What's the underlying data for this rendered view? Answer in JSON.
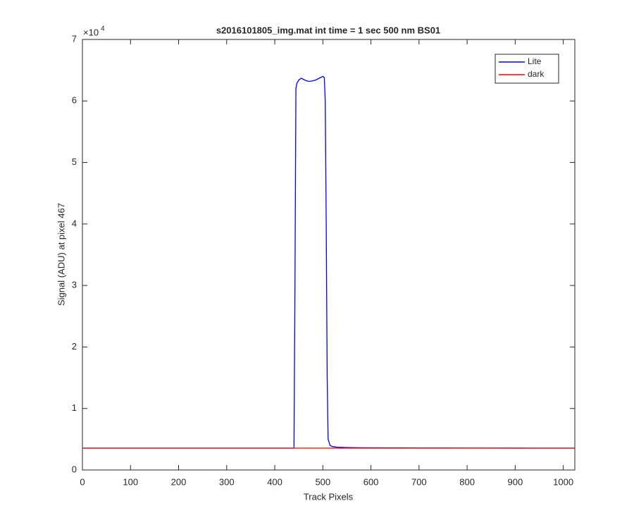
{
  "chart_data": {
    "type": "line",
    "title": "s2016101805_img.mat int time = 1 sec  500 nm BS01",
    "xlabel": "Track Pixels",
    "ylabel": "Signal (ADU) at pixel 467",
    "y_multiplier": "×10",
    "y_multiplier_exponent": "4",
    "xlim": [
      0,
      1024
    ],
    "ylim": [
      0,
      70000
    ],
    "xticks": [
      0,
      100,
      200,
      300,
      400,
      500,
      600,
      700,
      800,
      900,
      1000
    ],
    "yticks": [
      {
        "value": 0,
        "label": "0"
      },
      {
        "value": 10000,
        "label": "1"
      },
      {
        "value": 20000,
        "label": "2"
      },
      {
        "value": 30000,
        "label": "3"
      },
      {
        "value": 40000,
        "label": "4"
      },
      {
        "value": 50000,
        "label": "5"
      },
      {
        "value": 60000,
        "label": "6"
      },
      {
        "value": 70000,
        "label": "7"
      }
    ],
    "legend": "upper right",
    "series": [
      {
        "name": "Lite",
        "color": "#0000ff",
        "x": [
          1,
          100,
          200,
          300,
          400,
          440,
          442,
          444,
          446,
          450,
          455,
          460,
          465,
          470,
          475,
          480,
          485,
          490,
          495,
          500,
          503,
          505,
          507,
          509,
          511,
          515,
          520,
          530,
          550,
          600,
          700,
          800,
          900,
          1000,
          1024
        ],
        "values": [
          3550,
          3550,
          3550,
          3550,
          3550,
          3550,
          30000,
          62000,
          62900,
          63400,
          63700,
          63500,
          63300,
          63200,
          63200,
          63300,
          63400,
          63600,
          63800,
          64000,
          63800,
          60000,
          40000,
          15000,
          5000,
          4000,
          3800,
          3700,
          3650,
          3600,
          3580,
          3570,
          3560,
          3550,
          3550
        ]
      },
      {
        "name": "dark",
        "color": "#ff0000",
        "x": [
          1,
          200,
          400,
          600,
          800,
          1024
        ],
        "values": [
          3550,
          3550,
          3550,
          3550,
          3550,
          3550
        ]
      }
    ]
  }
}
